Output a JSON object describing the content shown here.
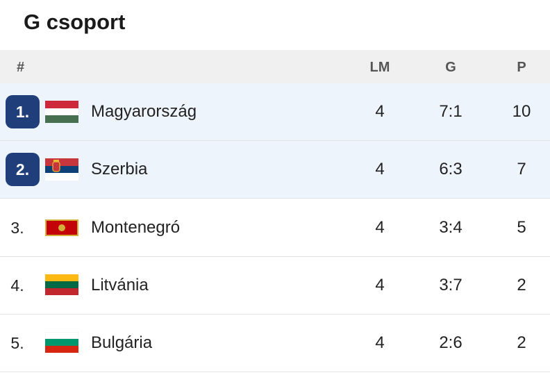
{
  "title": "G csoport",
  "header": [
    "#",
    "LM",
    "G",
    "P"
  ],
  "rows": [
    {
      "rank": "1.",
      "team": "Magyarország",
      "played": 4,
      "goals": "7:1",
      "points": 10
    },
    {
      "rank": "2.",
      "team": "Szerbia",
      "played": 4,
      "goals": "6:3",
      "points": 7
    },
    {
      "rank": "3.",
      "team": "Montenegró",
      "played": 4,
      "goals": "3:4",
      "points": 5
    },
    {
      "rank": "4.",
      "team": "Litvánia",
      "played": 4,
      "goals": "3:7",
      "points": 2
    },
    {
      "rank": "5.",
      "team": "Bulgária",
      "played": 4,
      "goals": "2:6",
      "points": 2
    }
  ]
}
